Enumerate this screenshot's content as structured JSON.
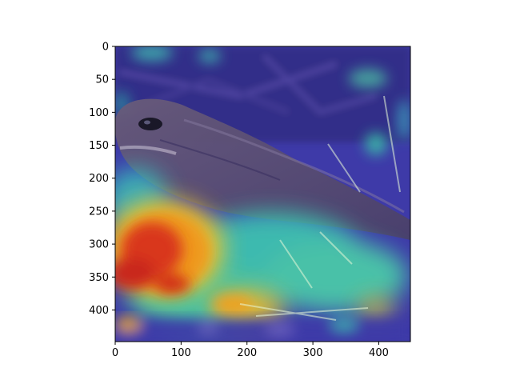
{
  "figure": {
    "background": "#ffffff",
    "subject": "nightjar"
  },
  "image": {
    "colormap": "jet",
    "hotspot_color": "#d0201a",
    "warm_color": "#f0a020",
    "cool_color": "#3a38b8",
    "mid_color": "#40c8b0"
  },
  "axes": {
    "xlim": [
      0,
      448
    ],
    "ylim": [
      448,
      0
    ],
    "x_ticks": [
      "0",
      "100",
      "200",
      "300",
      "400"
    ],
    "y_ticks": [
      "0",
      "50",
      "100",
      "150",
      "200",
      "250",
      "300",
      "350",
      "400"
    ],
    "x_tick_values": [
      0,
      100,
      200,
      300,
      400
    ],
    "y_tick_values": [
      0,
      50,
      100,
      150,
      200,
      250,
      300,
      350,
      400
    ]
  }
}
